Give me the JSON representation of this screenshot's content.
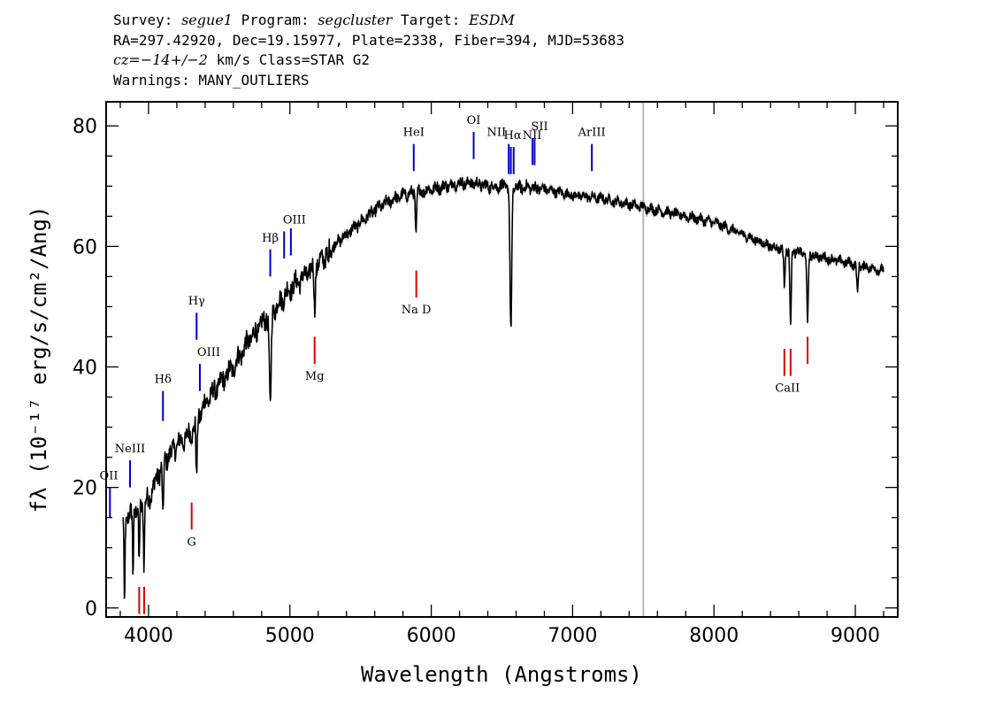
{
  "header": {
    "survey_label": "Survey: ",
    "survey": "segue1",
    "program_label": " Program: ",
    "program": "segcluster",
    "target_label": " Target: ",
    "target": "ESDM",
    "line2": "RA=297.42920, Dec=19.15977, Plate=2338, Fiber=394, MJD=53683",
    "cz": "cz=−14+/−2",
    "cz_rest": " km/s Class=STAR G2",
    "warnings": "Warnings: MANY_OUTLIERS"
  },
  "colors": {
    "spectrum": "#000000",
    "error_band": "#b0b0b0",
    "emission": "#0000cc",
    "absorption": "#dd0000",
    "marker": "#b8b8b8"
  },
  "chart_data": {
    "type": "line",
    "xlabel": "Wavelength (Angstroms)",
    "ylabel": "fλ (10⁻¹⁷ erg/s/cm²/Ang)",
    "xlim": [
      3700,
      9300
    ],
    "ylim": [
      -1.5,
      84
    ],
    "xticks": [
      4000,
      5000,
      6000,
      7000,
      8000,
      9000
    ],
    "yticks": [
      0,
      20,
      40,
      60,
      80
    ],
    "grid": false,
    "vertical_marker": 7500,
    "continuum": [
      [
        3820,
        14
      ],
      [
        3900,
        16
      ],
      [
        4000,
        18
      ],
      [
        4100,
        24
      ],
      [
        4200,
        27
      ],
      [
        4300,
        29
      ],
      [
        4400,
        34
      ],
      [
        4500,
        37
      ],
      [
        4600,
        40
      ],
      [
        4700,
        44
      ],
      [
        4800,
        47
      ],
      [
        4900,
        50
      ],
      [
        5000,
        53
      ],
      [
        5100,
        55
      ],
      [
        5200,
        57
      ],
      [
        5300,
        60
      ],
      [
        5400,
        62
      ],
      [
        5500,
        64
      ],
      [
        5600,
        66
      ],
      [
        5700,
        67.5
      ],
      [
        5800,
        68.5
      ],
      [
        5900,
        69
      ],
      [
        6000,
        69.5
      ],
      [
        6100,
        70
      ],
      [
        6200,
        70.5
      ],
      [
        6300,
        70.5
      ],
      [
        6400,
        70
      ],
      [
        6500,
        70
      ],
      [
        6600,
        69.8
      ],
      [
        6700,
        69.8
      ],
      [
        6800,
        69.5
      ],
      [
        6900,
        69
      ],
      [
        7000,
        68.5
      ],
      [
        7200,
        68
      ],
      [
        7400,
        67
      ],
      [
        7600,
        66
      ],
      [
        7800,
        65
      ],
      [
        8000,
        64
      ],
      [
        8200,
        62
      ],
      [
        8400,
        60
      ],
      [
        8600,
        59
      ],
      [
        8800,
        58
      ],
      [
        9000,
        57
      ],
      [
        9200,
        56
      ]
    ],
    "absorption_dips": [
      [
        3830,
        4,
        15
      ],
      [
        3890,
        4,
        10
      ],
      [
        3933,
        5,
        10
      ],
      [
        3968,
        5,
        10
      ],
      [
        4102,
        6,
        10
      ],
      [
        4340,
        6,
        10
      ],
      [
        4861,
        9,
        16
      ],
      [
        5175,
        6,
        7
      ],
      [
        5270,
        5,
        3
      ],
      [
        5892,
        6,
        7
      ],
      [
        6563,
        9,
        24
      ],
      [
        8498,
        7,
        6
      ],
      [
        8542,
        7,
        12
      ],
      [
        8662,
        7,
        12
      ],
      [
        9015,
        7,
        5
      ]
    ],
    "emission_lines": [
      {
        "label": "OII",
        "x": 3727,
        "y1": 15,
        "y2": 20
      },
      {
        "label": "NeIII",
        "x": 3869,
        "y1": 20,
        "y2": 24.5
      },
      {
        "label": "Hδ",
        "x": 4102,
        "y1": 31,
        "y2": 36
      },
      {
        "label": "Hγ",
        "x": 4340,
        "y1": 44.5,
        "y2": 49
      },
      {
        "label": "OIII",
        "x": 4363,
        "y1": 36,
        "y2": 40.5
      },
      {
        "label": "Hβ",
        "x": 4861,
        "y1": 55,
        "y2": 59.5
      },
      {
        "label": "OIII",
        "x": 4959,
        "y1": 58,
        "y2": 62.5
      },
      {
        "label": "",
        "x": 5007,
        "y1": 58.5,
        "y2": 63
      },
      {
        "label": "HeI",
        "x": 5876,
        "y1": 72.5,
        "y2": 77
      },
      {
        "label": "OI",
        "x": 6300,
        "y1": 74.5,
        "y2": 79
      },
      {
        "label": "NII",
        "x": 6548,
        "y1": 72,
        "y2": 77
      },
      {
        "label": "Hα",
        "x": 6563,
        "y1": 72,
        "y2": 76.5
      },
      {
        "label": "NII",
        "x": 6583,
        "y1": 72,
        "y2": 76.5
      },
      {
        "label": "SII",
        "x": 6716,
        "y1": 73.5,
        "y2": 78
      },
      {
        "label": "",
        "x": 6731,
        "y1": 73.5,
        "y2": 78
      },
      {
        "label": "ArIII",
        "x": 7136,
        "y1": 72.5,
        "y2": 77
      }
    ],
    "absorption_lines": [
      {
        "label": "",
        "x": 3934,
        "y1": -1,
        "y2": 3.5
      },
      {
        "label": "",
        "x": 3969,
        "y1": -1,
        "y2": 3.5
      },
      {
        "label": "G",
        "x": 4305,
        "y1": 13,
        "y2": 17.5
      },
      {
        "label": "Mg",
        "x": 5175,
        "y1": 40.5,
        "y2": 45
      },
      {
        "label": "Na D",
        "x": 5894,
        "y1": 51.5,
        "y2": 56
      },
      {
        "label": "CaII",
        "x": 8498,
        "y1": 38.5,
        "y2": 43
      },
      {
        "label": "",
        "x": 8542,
        "y1": 38.5,
        "y2": 43
      },
      {
        "label": "",
        "x": 8662,
        "y1": 40.5,
        "y2": 45
      }
    ]
  }
}
